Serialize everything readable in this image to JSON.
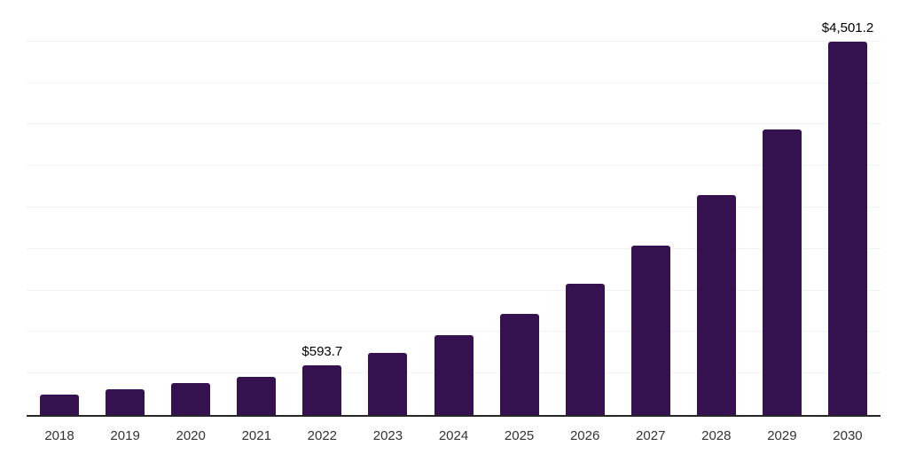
{
  "chart_data": {
    "type": "bar",
    "title": "",
    "xlabel": "",
    "ylabel": "",
    "categories": [
      "2018",
      "2019",
      "2020",
      "2021",
      "2022",
      "2023",
      "2024",
      "2025",
      "2026",
      "2027",
      "2028",
      "2029",
      "2030"
    ],
    "values": [
      248,
      306,
      383,
      462,
      593.7,
      752,
      963,
      1222,
      1577,
      2038,
      2645,
      3440,
      4501.2
    ],
    "data_labels": [
      "",
      "",
      "",
      "",
      "$593.7",
      "",
      "",
      "",
      "",
      "",
      "",
      "",
      "$4,501.2"
    ],
    "ylim": [
      0,
      5000
    ],
    "gridline_step": 500,
    "grid": true,
    "legend": false,
    "colors": {
      "bar": "#36114f",
      "axis_line": "#262626",
      "gridline": "#f2f2f2",
      "value_label": "#000000",
      "tick_label": "#333333",
      "background": "#ffffff"
    }
  }
}
